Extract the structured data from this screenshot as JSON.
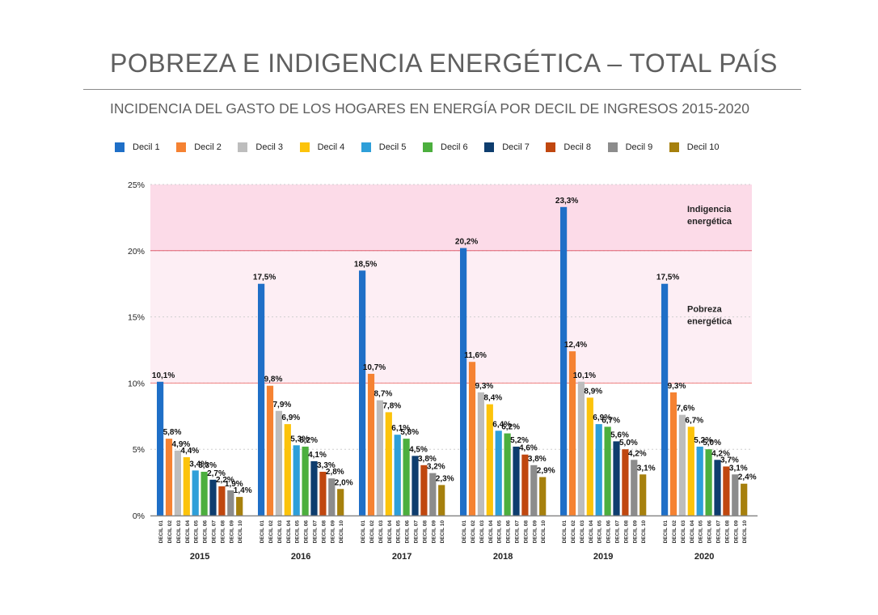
{
  "page": {
    "title": "POBREZA E INDIGENCIA ENERGÉTICA – TOTAL PAÍS",
    "subtitle": "INCIDENCIA DEL GASTO DE LOS HOGARES EN ENERGÍA POR DECIL DE INGRESOS 2015-2020"
  },
  "chart_data": {
    "type": "bar",
    "title": "INCIDENCIA DEL GASTO DE LOS HOGARES EN ENERGÍA POR DECIL DE INGRESOS 2015-2020",
    "ylim": [
      0,
      25
    ],
    "y_ticks": [
      "0%",
      "5%",
      "10%",
      "15%",
      "20%",
      "25%"
    ],
    "y_tick_values": [
      0,
      5,
      10,
      15,
      20,
      25
    ],
    "grid": true,
    "legend_position": "top",
    "categories": [
      "2015",
      "2016",
      "2017",
      "2018",
      "2019",
      "2020"
    ],
    "bar_tick_labels": [
      "DECIL 01",
      "DECIL 02",
      "DECIL 03",
      "DECIL 04",
      "DECIL 05",
      "DECIL 06",
      "DECIL 07",
      "DECIL 08",
      "DECIL 09",
      "DECIL 10"
    ],
    "series": [
      {
        "name": "Decil 1",
        "color": "#1f6fc7",
        "values": [
          10.1,
          17.5,
          18.5,
          20.2,
          23.3,
          17.5
        ],
        "labels": [
          "10,1%",
          "17,5%",
          "18,5%",
          "20,2%",
          "23,3%",
          "17,5%"
        ]
      },
      {
        "name": "Decil 2",
        "color": "#f58232",
        "values": [
          5.8,
          9.8,
          10.7,
          11.6,
          12.4,
          9.3
        ],
        "labels": [
          "5,8%",
          "9,8%",
          "10,7%",
          "11,6%",
          "12,4%",
          "9,3%"
        ]
      },
      {
        "name": "Decil 3",
        "color": "#bdbdbd",
        "values": [
          4.9,
          7.9,
          8.7,
          9.3,
          10.1,
          7.6
        ],
        "labels": [
          "4,9%",
          "7,9%",
          "8,7%",
          "9,3%",
          "10,1%",
          "7,6%"
        ]
      },
      {
        "name": "Decil 4",
        "color": "#fcc30b",
        "values": [
          4.4,
          6.9,
          7.8,
          8.4,
          8.9,
          6.7
        ],
        "labels": [
          "4,4%",
          "6,9%",
          "7,8%",
          "8,4%",
          "8,9%",
          "6,7%"
        ]
      },
      {
        "name": "Decil 5",
        "color": "#2e9fd9",
        "values": [
          3.4,
          5.3,
          6.1,
          6.4,
          6.9,
          5.2
        ],
        "labels": [
          "3,4%",
          "5,3%",
          "6,1%",
          "6,4%",
          "6,9%",
          "5,2%"
        ]
      },
      {
        "name": "Decil 6",
        "color": "#4caf3e",
        "values": [
          3.3,
          5.2,
          5.8,
          6.2,
          6.7,
          5.0
        ],
        "labels": [
          "3,3%",
          "5,2%",
          "5,8%",
          "6,2%",
          "6,7%",
          "5,0%"
        ]
      },
      {
        "name": "Decil 7",
        "color": "#0e3d6e",
        "values": [
          2.7,
          4.1,
          4.5,
          5.2,
          5.6,
          4.2
        ],
        "labels": [
          "2,7%",
          "4,1%",
          "4,5%",
          "5,2%",
          "5,6%",
          "4,2%"
        ]
      },
      {
        "name": "Decil 8",
        "color": "#c0470f",
        "values": [
          2.2,
          3.3,
          3.8,
          4.6,
          5.0,
          3.7
        ],
        "labels": [
          "2,2%",
          "3,3%",
          "3,8%",
          "4,6%",
          "5,0%",
          "3,7%"
        ]
      },
      {
        "name": "Decil 9",
        "color": "#8c8c8c",
        "values": [
          1.9,
          2.8,
          3.2,
          3.8,
          4.2,
          3.1
        ],
        "labels": [
          "1,9%",
          "2,8%",
          "3,2%",
          "3,8%",
          "4,2%",
          "3,1%"
        ]
      },
      {
        "name": "Decil 10",
        "color": "#a6800d",
        "values": [
          1.4,
          2.0,
          2.3,
          2.9,
          3.1,
          2.4
        ],
        "labels": [
          "1,4%",
          "2,0%",
          "2,3%",
          "2,9%",
          "3,1%",
          "2,4%"
        ]
      }
    ],
    "zones": [
      {
        "name": "Indigencia energética",
        "label_lines": [
          "Indigencia",
          "energética"
        ],
        "from": 20,
        "to": 25,
        "color": "#fcdbe8"
      },
      {
        "name": "Pobreza energética",
        "label_lines": [
          "Pobreza",
          "energética"
        ],
        "from": 10,
        "to": 20,
        "color": "#fdeef4"
      }
    ],
    "threshold_lines": [
      {
        "value": 10,
        "color": "#f08080"
      },
      {
        "value": 20,
        "color": "#e06070"
      }
    ]
  }
}
